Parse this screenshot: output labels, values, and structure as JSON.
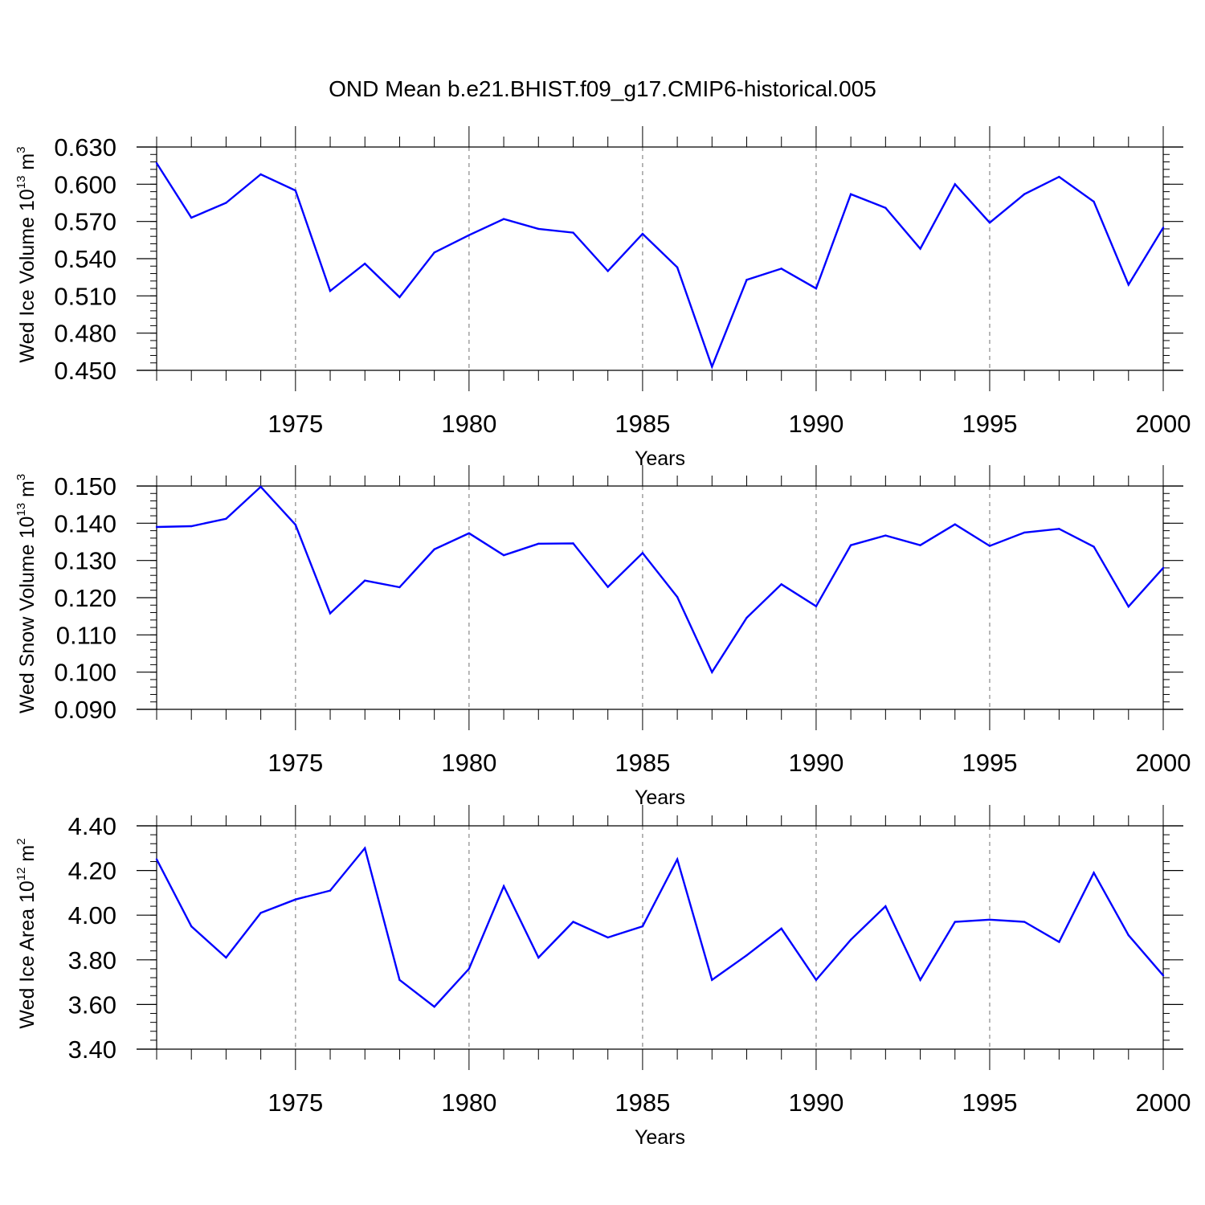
{
  "title": "OND Mean b.e21.BHIST.f09_g17.CMIP6-historical.005",
  "colors": {
    "line": "#0000ff",
    "axis": "#000000",
    "grid": "#999999"
  },
  "chart_data": [
    {
      "type": "line",
      "name": "ice-volume",
      "ylabel": {
        "main": "Wed Ice Volume 10",
        "exp": "13",
        "unit": " m",
        "unit_exp": "3"
      },
      "xlabel": "Years",
      "x": [
        1971,
        1972,
        1973,
        1974,
        1975,
        1976,
        1977,
        1978,
        1979,
        1980,
        1981,
        1982,
        1983,
        1984,
        1985,
        1986,
        1987,
        1988,
        1989,
        1990,
        1991,
        1992,
        1993,
        1994,
        1995,
        1996,
        1997,
        1998,
        1999,
        2000
      ],
      "values": [
        0.617,
        0.573,
        0.585,
        0.608,
        0.595,
        0.514,
        0.536,
        0.509,
        0.545,
        0.559,
        0.572,
        0.564,
        0.561,
        0.53,
        0.56,
        0.533,
        0.453,
        0.523,
        0.532,
        0.516,
        0.592,
        0.581,
        0.548,
        0.6,
        0.569,
        0.592,
        0.606,
        0.586,
        0.519,
        0.565
      ],
      "xlim": [
        1971,
        2000
      ],
      "ylim": [
        0.45,
        0.63
      ],
      "yticks": [
        0.45,
        0.48,
        0.51,
        0.54,
        0.57,
        0.6,
        0.63
      ],
      "ytick_labels": [
        "0.450",
        "0.480",
        "0.510",
        "0.540",
        "0.570",
        "0.600",
        "0.630"
      ],
      "yminor": 0.006,
      "xticks": [
        1975,
        1980,
        1985,
        1990,
        1995,
        2000
      ],
      "xtick_labels": [
        "1975",
        "1980",
        "1985",
        "1990",
        "1995",
        "2000"
      ],
      "grid": "vertical dashed at major x ticks"
    },
    {
      "type": "line",
      "name": "snow-volume",
      "ylabel": {
        "main": "Wed Snow Volume 10",
        "exp": "13",
        "unit": " m",
        "unit_exp": "3"
      },
      "xlabel": "Years",
      "x": [
        1971,
        1972,
        1973,
        1974,
        1975,
        1976,
        1977,
        1978,
        1979,
        1980,
        1981,
        1982,
        1983,
        1984,
        1985,
        1986,
        1987,
        1988,
        1989,
        1990,
        1991,
        1992,
        1993,
        1994,
        1995,
        1996,
        1997,
        1998,
        1999,
        2000
      ],
      "values": [
        0.139,
        0.1392,
        0.1412,
        0.1498,
        0.1396,
        0.1158,
        0.1246,
        0.1228,
        0.133,
        0.1373,
        0.1314,
        0.1345,
        0.1346,
        0.1229,
        0.132,
        0.1202,
        0.1,
        0.1146,
        0.1236,
        0.1177,
        0.1341,
        0.1367,
        0.1341,
        0.1397,
        0.1339,
        0.1375,
        0.1385,
        0.1337,
        0.1176,
        0.128
      ],
      "xlim": [
        1971,
        2000
      ],
      "ylim": [
        0.09,
        0.15
      ],
      "yticks": [
        0.09,
        0.1,
        0.11,
        0.12,
        0.13,
        0.14,
        0.15
      ],
      "ytick_labels": [
        "0.090",
        "0.100",
        "0.110",
        "0.120",
        "0.130",
        "0.140",
        "0.150"
      ],
      "yminor": 0.002,
      "xticks": [
        1975,
        1980,
        1985,
        1990,
        1995,
        2000
      ],
      "xtick_labels": [
        "1975",
        "1980",
        "1985",
        "1990",
        "1995",
        "2000"
      ],
      "grid": "vertical dashed at major x ticks"
    },
    {
      "type": "line",
      "name": "ice-area",
      "ylabel": {
        "main": "Wed Ice Area 10",
        "exp": "12",
        "unit": " m",
        "unit_exp": "2"
      },
      "xlabel": "Years",
      "x": [
        1971,
        1972,
        1973,
        1974,
        1975,
        1976,
        1977,
        1978,
        1979,
        1980,
        1981,
        1982,
        1983,
        1984,
        1985,
        1986,
        1987,
        1988,
        1989,
        1990,
        1991,
        1992,
        1993,
        1994,
        1995,
        1996,
        1997,
        1998,
        1999,
        2000
      ],
      "values": [
        4.25,
        3.95,
        3.81,
        4.01,
        4.07,
        4.11,
        4.3,
        3.71,
        3.59,
        3.76,
        4.13,
        3.81,
        3.97,
        3.9,
        3.95,
        4.25,
        3.71,
        3.82,
        3.94,
        3.71,
        3.89,
        4.04,
        3.71,
        3.97,
        3.98,
        3.97,
        3.88,
        4.19,
        3.91,
        3.73
      ],
      "xlim": [
        1971,
        2000
      ],
      "ylim": [
        3.4,
        4.4
      ],
      "yticks": [
        3.4,
        3.6,
        3.8,
        4.0,
        4.2,
        4.4
      ],
      "ytick_labels": [
        "3.40",
        "3.60",
        "3.80",
        "4.00",
        "4.20",
        "4.40"
      ],
      "yminor": 0.04,
      "xticks": [
        1975,
        1980,
        1985,
        1990,
        1995,
        2000
      ],
      "xtick_labels": [
        "1975",
        "1980",
        "1985",
        "1990",
        "1995",
        "2000"
      ],
      "grid": "vertical dashed at major x ticks"
    }
  ]
}
